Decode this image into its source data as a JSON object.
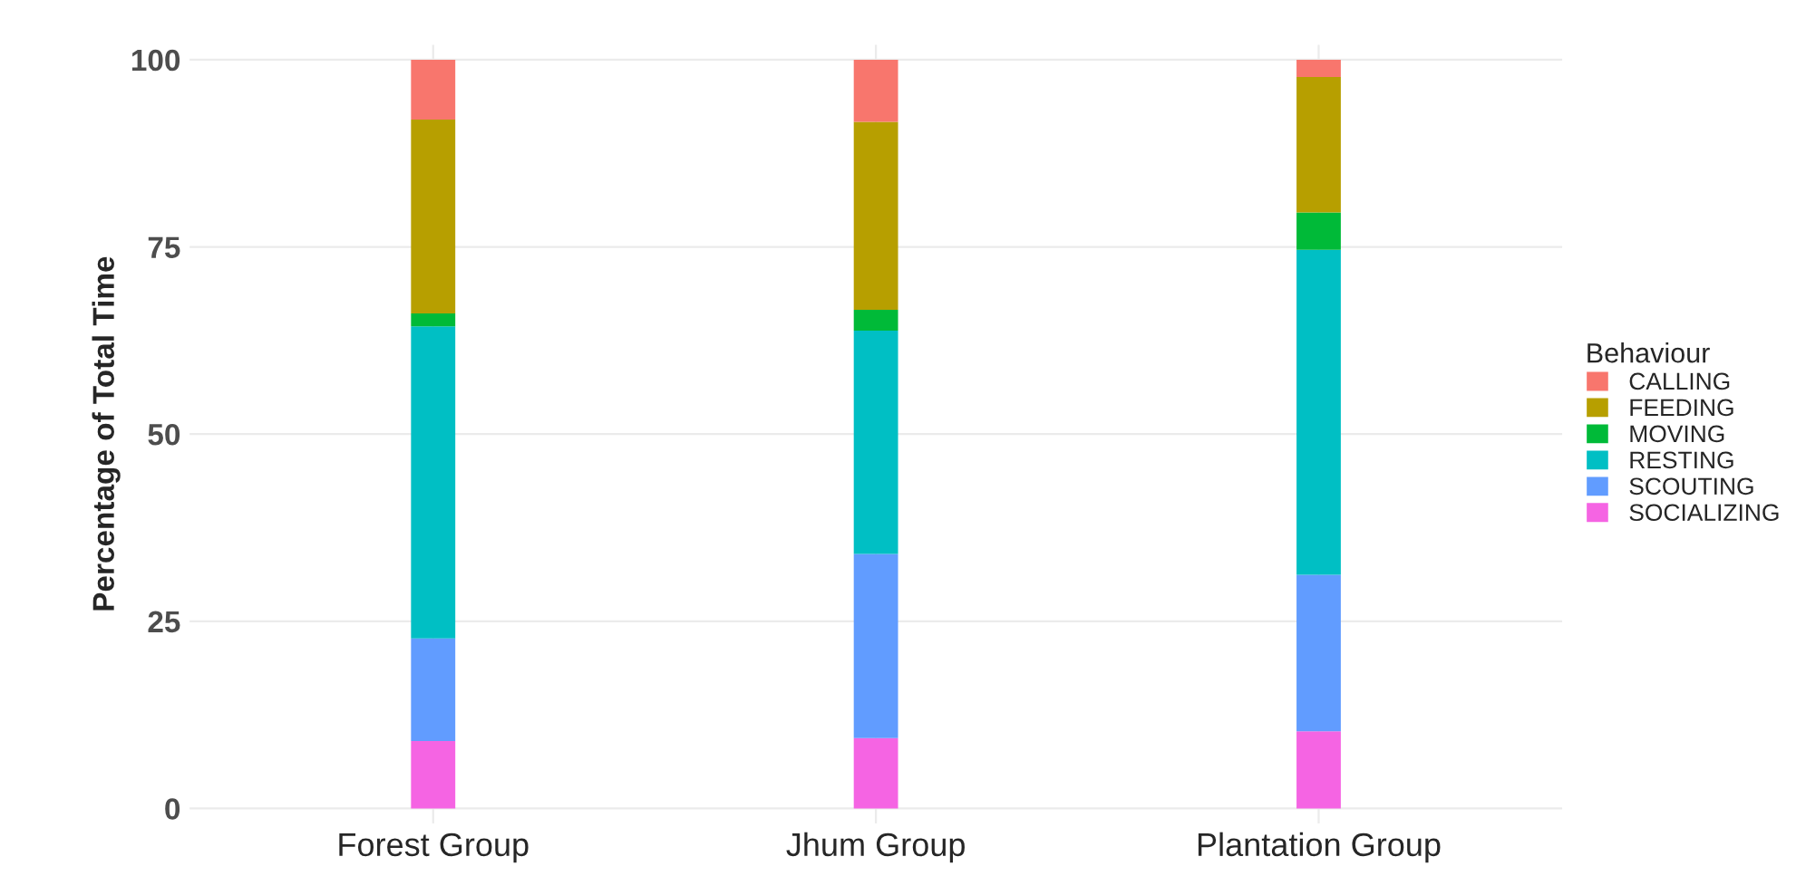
{
  "chart_data": {
    "type": "bar",
    "stacked": true,
    "ylabel": "Percentage of Total Time",
    "legend_title": "Behaviour",
    "legend": "right",
    "categories": [
      "Forest Group",
      "Jhum Group",
      "Plantation Group"
    ],
    "series": [
      {
        "name": "SOCIALIZING",
        "color": "#f564e3",
        "values": [
          9.0,
          9.4,
          10.3
        ]
      },
      {
        "name": "SCOUTING",
        "color": "#619cff",
        "values": [
          13.7,
          24.6,
          20.9
        ]
      },
      {
        "name": "RESTING",
        "color": "#00bfc4",
        "values": [
          41.7,
          29.8,
          43.4
        ]
      },
      {
        "name": "MOVING",
        "color": "#00ba38",
        "values": [
          1.7,
          2.8,
          5.0
        ]
      },
      {
        "name": "FEEDING",
        "color": "#b79f00",
        "values": [
          25.9,
          25.1,
          18.1
        ]
      },
      {
        "name": "CALLING",
        "color": "#f8766d",
        "values": [
          8.0,
          8.3,
          2.3
        ]
      }
    ],
    "ylim": [
      -2,
      102
    ],
    "yticks": [
      0,
      25,
      50,
      75,
      100
    ],
    "grid": true
  }
}
